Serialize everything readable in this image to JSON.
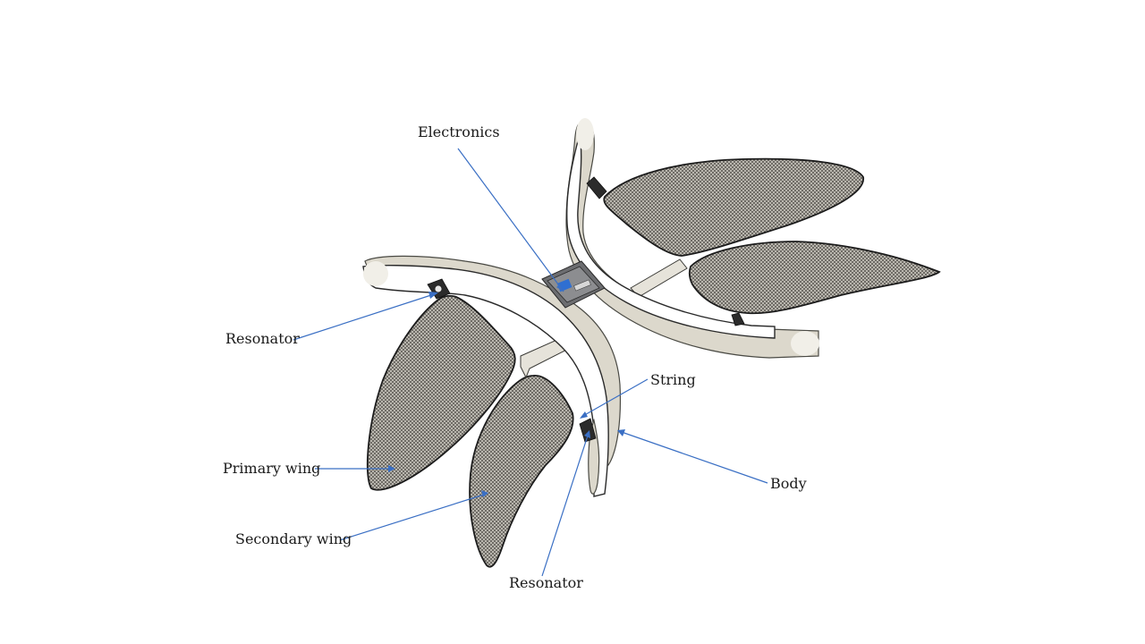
{
  "labels": {
    "electronics": "Electronics",
    "resonator_left": "Resonator",
    "string": "String",
    "primary_wing": "Primary wing",
    "body": "Body",
    "secondary_wing": "Secondary wing",
    "resonator_bottom": "Resonator"
  },
  "colors": {
    "leader_line": "#3a6fc4",
    "body": "#dcd8cc",
    "wing_mesh": "#8a8780",
    "electronics": "#2f6fd1"
  }
}
